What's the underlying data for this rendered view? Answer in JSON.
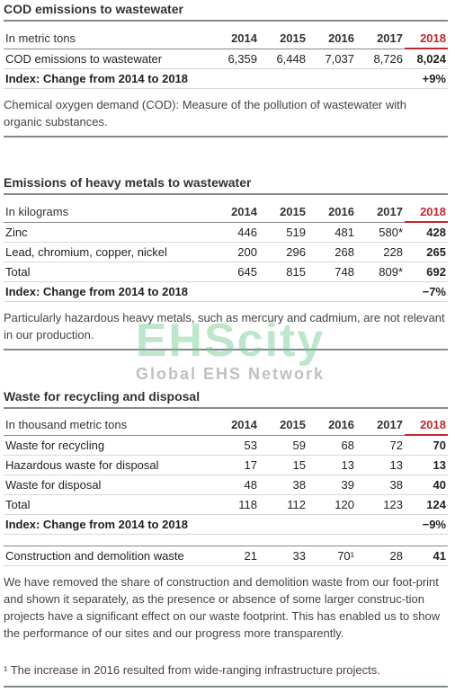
{
  "years": [
    "2014",
    "2015",
    "2016",
    "2017",
    "2018"
  ],
  "cod": {
    "title": "COD emissions to wastewater",
    "unit": "In metric tons",
    "rows": [
      {
        "label": "COD emissions to wastewater",
        "values": [
          "6,359",
          "6,448",
          "7,037",
          "8,726",
          "8,024"
        ]
      }
    ],
    "index_label": "Index: Change from 2014 to 2018",
    "index_value": "+9%",
    "note": "Chemical oxygen demand (COD): Measure of the pollution of wastewater with organic substances."
  },
  "metals": {
    "title": "Emissions of heavy metals to wastewater",
    "unit": "In kilograms",
    "rows": [
      {
        "label": "Zinc",
        "values": [
          "446",
          "519",
          "481",
          "580*",
          "428"
        ]
      },
      {
        "label": "Lead, chromium, copper, nickel",
        "values": [
          "200",
          "296",
          "268",
          "228",
          "265"
        ]
      },
      {
        "label": "Total",
        "values": [
          "645",
          "815",
          "748",
          "809*",
          "692"
        ]
      }
    ],
    "index_label": "Index: Change from 2014 to 2018",
    "index_value": "−7%",
    "note": "Particularly hazardous heavy metals, such as mercury and cadmium, are not relevant in our production."
  },
  "waste": {
    "title": "Waste for recycling and disposal",
    "unit": "In thousand metric tons",
    "rows": [
      {
        "label": "Waste for recycling",
        "values": [
          "53",
          "59",
          "68",
          "72",
          "70"
        ]
      },
      {
        "label": "Hazardous waste for disposal",
        "values": [
          "17",
          "15",
          "13",
          "13",
          "13"
        ]
      },
      {
        "label": "Waste for disposal",
        "values": [
          "48",
          "38",
          "39",
          "38",
          "40"
        ]
      },
      {
        "label": "Total",
        "values": [
          "118",
          "112",
          "120",
          "123",
          "124"
        ]
      }
    ],
    "index_label": "Index: Change from 2014 to 2018",
    "index_value": "−9%",
    "cdw": {
      "label": "Construction and demolition waste",
      "values": [
        "21",
        "33",
        "70¹",
        "28",
        "41"
      ]
    },
    "note": "We have removed the share of construction and demolition waste from our foot-print and shown it separately, as the presence or absence of some larger construc-tion projects have a significant effect on our waste footprint. This has enabled us to show the performance of our sites and our progress more transparently."
  },
  "footnote": "¹ The increase in 2016 resulted from wide-ranging infrastructure projects.",
  "watermark": {
    "brand": "EHScity",
    "tagline": "Global EHS Network"
  }
}
